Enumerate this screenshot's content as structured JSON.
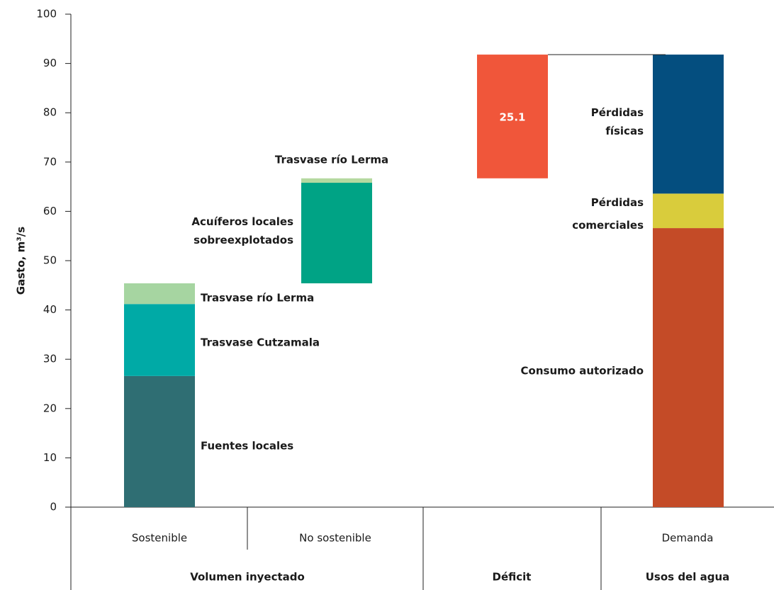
{
  "chart_data": {
    "type": "waterfall",
    "ylabel": "Gasto, m³/s",
    "ylim": [
      0,
      100
    ],
    "yticks": [
      0,
      10,
      20,
      30,
      40,
      50,
      60,
      70,
      80,
      90,
      100
    ],
    "categories": [
      "Sostenible",
      "No sostenible",
      null,
      "Demanda"
    ],
    "groups": [
      "Volumen inyectado",
      "Déficit",
      "Usos del agua"
    ],
    "columns": [
      {
        "segments": [
          {
            "name": "Fuentes locales",
            "color": "#2f6e73",
            "value": 26.6
          },
          {
            "name": "Trasvase Cutzamala",
            "color": "#00aaa6",
            "value": 14.6
          },
          {
            "name": "Trasvase río Lerma",
            "color": "#a6d5a1",
            "value": 4.2
          }
        ]
      },
      {
        "segments": [
          {
            "name": "Acuíferos locales\nsobreexplotados",
            "color": "#00a385",
            "value": 20.4
          },
          {
            "name": "Trasvase río Lerma",
            "color": "#b5d9a0",
            "value": 0.9
          }
        ]
      },
      {
        "segments": [
          {
            "color": "#f0563a",
            "value": 25.1
          }
        ]
      },
      {
        "segments": [
          {
            "name": "Consumo autorizado",
            "color": "#c44b27",
            "value": 56.6
          },
          {
            "name": "Pérdidas\ncomerciales",
            "color": "#d9cc3c",
            "value": 7.0
          },
          {
            "name": "Pérdidas\nfísicas",
            "color": "#044e7f",
            "value": 28.2
          }
        ]
      }
    ]
  }
}
